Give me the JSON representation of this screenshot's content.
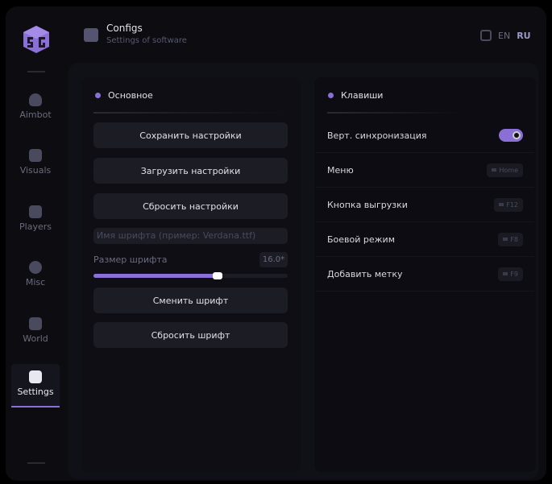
{
  "header": {
    "title": "Configs",
    "subtitle": "Settings of software",
    "lang": [
      "EN",
      "RU"
    ],
    "active_lang": "RU"
  },
  "sidebar": {
    "items": [
      {
        "label": "Aimbot",
        "icon": "skull-icon"
      },
      {
        "label": "Visuals",
        "icon": "vr-glasses-icon"
      },
      {
        "label": "Players",
        "icon": "users-icon"
      },
      {
        "label": "Misc",
        "icon": "chat-bubble-icon"
      },
      {
        "label": "World",
        "icon": "briefcase-icon"
      },
      {
        "label": "Settings",
        "icon": "list-icon",
        "active": true
      }
    ]
  },
  "left": {
    "section": "Основное",
    "buttons": [
      "Сохранить настройки",
      "Загрузить настройки",
      "Сбросить настройки"
    ],
    "font_input_placeholder": "Имя шрифта (пример: Verdana.ttf)",
    "font_size_label": "Размер шрифта",
    "font_size_value": "16.0*",
    "font_size_fraction": 0.64,
    "font_buttons": [
      "Сменить шрифт",
      "Сбросить шрифт"
    ]
  },
  "right": {
    "section": "Клавиши",
    "rows": [
      {
        "label": "Верт. синхронизация",
        "toggle": true
      },
      {
        "label": "Меню",
        "key": "Home"
      },
      {
        "label": "Кнопка выгрузки",
        "key": "F12"
      },
      {
        "label": "Боевой режим",
        "key": "F8"
      },
      {
        "label": "Добавить метку",
        "key": "F9"
      }
    ]
  },
  "colors": {
    "accent": "#8a6fd6",
    "bg": "#0c0c11"
  }
}
